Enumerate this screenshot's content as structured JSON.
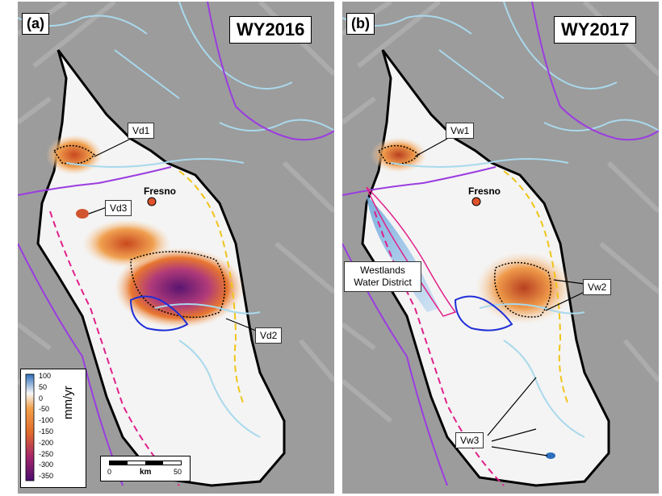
{
  "panels": [
    {
      "label": "(a)",
      "title": "WY2016",
      "callouts": [
        "Vd1",
        "Vd3",
        "Vd2"
      ],
      "city": "Fresno"
    },
    {
      "label": "(b)",
      "title": "WY2017",
      "callouts": [
        "Vw1",
        "Vw2",
        "Vw3"
      ],
      "city": "Fresno",
      "region_label": "Westlands Water District"
    }
  ],
  "colorbar": {
    "unit": "mm/yr",
    "ticks": [
      "100",
      "50",
      "0",
      "-50",
      "-100",
      "-150",
      "-200",
      "-250",
      "-300",
      "-350"
    ],
    "colors": {
      "pos": "#2c6fbd",
      "zero": "#f7f7f7",
      "neg1": "#f2a14b",
      "neg2": "#e06a2b",
      "neg3": "#a3256b",
      "neg4": "#4a0d6e"
    }
  },
  "scalebar": {
    "start": "0",
    "unit": "km",
    "end": "50"
  },
  "colors": {
    "river": "#a9d9ec",
    "boundary": "#9b3ce0",
    "basin_dash": "#e0208a",
    "aquifer": "#f0c419",
    "district": "#1f2fd6",
    "terrain": "#9a9a9a"
  }
}
